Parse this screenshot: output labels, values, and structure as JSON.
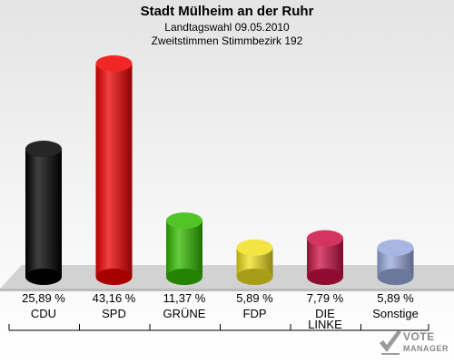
{
  "header": {
    "title": "Stadt Mülheim an der Ruhr",
    "subtitle1": "Landtagswahl 09.05.2010",
    "subtitle2": "Zweitstimmen Stimmbezirk 192"
  },
  "watermark": {
    "line1": "VOTE",
    "line2": "MANAGER"
  },
  "chart_data": {
    "type": "bar",
    "title": "Stadt Mülheim an der Ruhr",
    "subtitle": "Landtagswahl 09.05.2010 — Zweitstimmen Stimmbezirk 192",
    "categories": [
      "CDU",
      "SPD",
      "GRÜNE",
      "FDP",
      "DIE LINKE",
      "Sonstige"
    ],
    "category_lines": [
      [
        "CDU"
      ],
      [
        "SPD"
      ],
      [
        "GRÜNE"
      ],
      [
        "FDP"
      ],
      [
        "DIE",
        "LINKE"
      ],
      [
        "Sonstige"
      ]
    ],
    "values": [
      25.89,
      43.16,
      11.37,
      5.89,
      7.79,
      5.89
    ],
    "value_labels": [
      "25,89 %",
      "43,16 %",
      "11,37 %",
      "5,89 %",
      "7,79 %",
      "5,89 %"
    ],
    "colors": [
      "#000000",
      "#ee0000",
      "#33bb00",
      "#f0e020",
      "#cc1144",
      "#99aadd"
    ],
    "ylim": [
      0,
      45
    ],
    "grid": false,
    "legend": "none"
  }
}
